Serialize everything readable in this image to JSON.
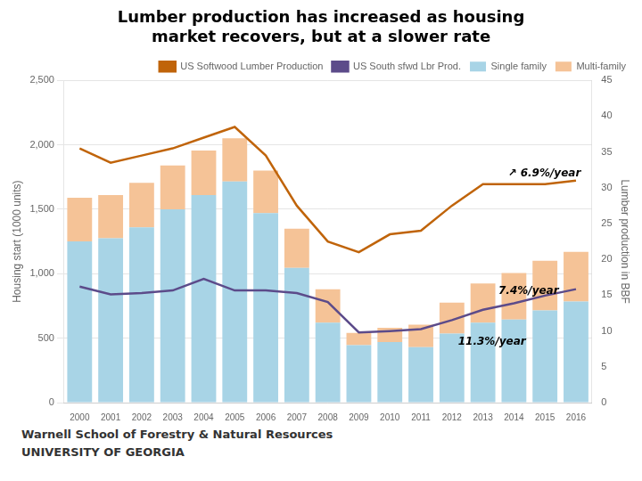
{
  "chart_data": {
    "type": "bar",
    "title": [
      "Lumber production has increased as housing",
      "market recovers, but at a slower rate"
    ],
    "categories": [
      2000,
      2001,
      2002,
      2003,
      2004,
      2005,
      2006,
      2007,
      2008,
      2009,
      2010,
      2011,
      2012,
      2013,
      2014,
      2015,
      2016
    ],
    "series": [
      {
        "name": "Single family",
        "type": "bar",
        "color": "#a8d4e6",
        "values": [
          1250,
          1275,
          1360,
          1500,
          1610,
          1715,
          1470,
          1045,
          620,
          445,
          470,
          430,
          535,
          620,
          645,
          715,
          785
        ]
      },
      {
        "name": "Multi-family",
        "type": "bar",
        "color": "#f5c397",
        "values": [
          340,
          335,
          345,
          340,
          345,
          335,
          330,
          305,
          260,
          95,
          110,
          175,
          240,
          305,
          360,
          385,
          385
        ]
      },
      {
        "name": "US Softwood Lumber Production",
        "type": "line",
        "color": "#c0640a",
        "axis": "y2",
        "values": [
          35.5,
          33.5,
          34.5,
          35.5,
          37.0,
          38.5,
          34.5,
          27.5,
          22.5,
          21.0,
          23.5,
          24.0,
          27.5,
          30.5,
          30.5,
          30.5,
          31.0
        ]
      },
      {
        "name": "US South sfwd Lbr Prod.",
        "type": "line",
        "color": "#5c4b8a",
        "values": [
          900,
          840,
          850,
          870,
          960,
          870,
          870,
          850,
          780,
          545,
          555,
          570,
          640,
          720,
          770,
          830,
          880
        ]
      }
    ],
    "stacked": true,
    "ylabel": "Housing start (1000 units)",
    "y2label": "Lumber production in BBF",
    "ylim": [
      0,
      2500
    ],
    "yticks": [
      0,
      500,
      1000,
      1500,
      2000,
      2500
    ],
    "y2lim": [
      0,
      45
    ],
    "y2ticks": [
      0,
      5,
      10,
      15,
      20,
      25,
      30,
      35,
      40,
      45
    ],
    "annotations": [
      {
        "text": "↗ 6.9%/year",
        "x": 13.8,
        "y": 31.2,
        "axis": "y2"
      },
      {
        "text": "7.4%/year",
        "x": 13.5,
        "y": 820
      },
      {
        "text": "11.3%/year",
        "x": 12.2,
        "y": 430
      }
    ],
    "grid": true,
    "legend": "upper right",
    "footer": [
      "Warnell School of Forestry & Natural Resources",
      "UNIVERSITY OF GEORGIA"
    ]
  }
}
